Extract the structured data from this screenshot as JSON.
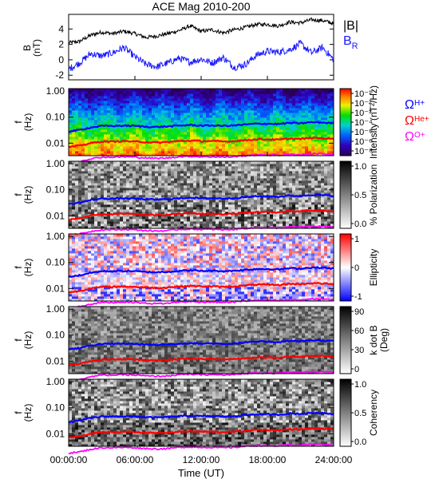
{
  "title": "ACE Mag 2010-200",
  "xaxis": {
    "label": "Time (UT)",
    "ticks": [
      "00:00:00",
      "06:00:00",
      "12:00:00",
      "18:00:00",
      "24:00:00"
    ],
    "tick_hours": [
      0,
      6,
      12,
      18,
      24
    ],
    "range_hours": [
      0,
      24
    ]
  },
  "colors": {
    "B_total": "#000000",
    "B_R": "#1a1aff",
    "H_gyro": "#0000ff",
    "He_gyro": "#ff0000",
    "O_gyro": "#ff00ff"
  },
  "gyro_labels": {
    "H": "Ω",
    "H_sub": "H+",
    "He": "Ω",
    "He_sub": "He+",
    "O": "Ω",
    "O_sub": "O+"
  },
  "chart_data": [
    {
      "type": "line",
      "panel": "mag",
      "title": "ACE Mag 2010-200",
      "ylabel_line1": "B",
      "ylabel_line2": "(nT)",
      "ylim": [
        -2.6,
        5.9
      ],
      "yticks": [
        -2,
        0,
        2,
        4
      ],
      "legend": [
        {
          "name": "|B|",
          "color": "#000000"
        },
        {
          "name": "B",
          "sub": "R",
          "color": "#1a1aff"
        }
      ],
      "series": [
        {
          "name": "|B|",
          "color": "#000000",
          "x": [
            0,
            1,
            2,
            3,
            4,
            5,
            6,
            7,
            8,
            9,
            10,
            11,
            12,
            13,
            14,
            15,
            16,
            17,
            18,
            19,
            20,
            21,
            22,
            23,
            24
          ],
          "y": [
            2.2,
            2.4,
            3.2,
            3.6,
            3.4,
            3.7,
            3.4,
            2.9,
            3.1,
            3.4,
            3.8,
            4.4,
            3.7,
            3.9,
            3.5,
            3.9,
            4.2,
            4.6,
            4.6,
            4.4,
            4.9,
            4.8,
            5.2,
            5.1,
            4.7
          ]
        },
        {
          "name": "B_R",
          "color": "#1a1aff",
          "x": [
            0,
            1,
            2,
            3,
            4,
            5,
            6,
            7,
            8,
            9,
            10,
            11,
            12,
            13,
            14,
            15,
            16,
            17,
            18,
            19,
            20,
            21,
            22,
            23,
            24
          ],
          "y": [
            -1.2,
            -0.4,
            0.8,
            0.5,
            0.9,
            1.6,
            0.4,
            -0.6,
            -0.9,
            -0.4,
            0.2,
            -0.3,
            0.1,
            -0.4,
            0.3,
            -1.0,
            -0.6,
            0.6,
            1.1,
            1.0,
            1.3,
            2.1,
            0.9,
            1.6,
            0.0
          ]
        }
      ]
    },
    {
      "type": "heatmap",
      "panel": "intensity",
      "ylabel_line1": "f",
      "ylabel_line2": "(Hz)",
      "yticks": [
        "1.00",
        "0.10",
        "0.01"
      ],
      "colorbar": {
        "label": "Intensity (nT²/Hz)",
        "ticks": [
          "10⁻¹",
          "10⁻²",
          "10⁻³",
          "10⁻⁴",
          "10⁻⁵",
          "10⁻⁶",
          "10⁻⁸"
        ],
        "scale": "rainbow"
      }
    },
    {
      "type": "heatmap",
      "panel": "polarization",
      "ylabel_line1": "f",
      "ylabel_line2": "(Hz)",
      "yticks": [
        "1.00",
        "0.10",
        "0.01"
      ],
      "colorbar": {
        "label": "% Polarization",
        "ticks": [
          "1.0",
          "0.5",
          "0.0"
        ],
        "scale": "gray"
      }
    },
    {
      "type": "heatmap",
      "panel": "ellipticity",
      "ylabel_line1": "f",
      "ylabel_line2": "(Hz)",
      "yticks": [
        "1.00",
        "0.10",
        "0.01"
      ],
      "colorbar": {
        "label": "Ellipticity",
        "ticks": [
          "1",
          "0",
          "-1"
        ],
        "scale": "redblue"
      }
    },
    {
      "type": "heatmap",
      "panel": "kdotb",
      "ylabel_line1": "f",
      "ylabel_line2": "(Hz)",
      "yticks": [
        "1.00",
        "0.10",
        "0.01"
      ],
      "colorbar": {
        "label": "k dot B",
        "label2": "(Deg)",
        "ticks": [
          "90",
          "60",
          "30",
          "0"
        ],
        "scale": "gray"
      }
    },
    {
      "type": "heatmap",
      "panel": "coherency",
      "ylabel_line1": "f",
      "ylabel_line2": "(Hz)",
      "yticks": [
        "1.00",
        "0.10",
        "0.01"
      ],
      "colorbar": {
        "label": "Coherency",
        "ticks": [
          "1.0",
          "0.5",
          "0.0"
        ],
        "scale": "gray"
      }
    }
  ],
  "gyro_lines": {
    "x": [
      0,
      1,
      2,
      3,
      4,
      5,
      6,
      7,
      8,
      9,
      10,
      11,
      12,
      13,
      14,
      15,
      16,
      17,
      18,
      19,
      20,
      21,
      22,
      23,
      24
    ],
    "H_hz": [
      0.028,
      0.032,
      0.04,
      0.046,
      0.046,
      0.047,
      0.046,
      0.043,
      0.042,
      0.044,
      0.047,
      0.05,
      0.047,
      0.048,
      0.046,
      0.048,
      0.052,
      0.056,
      0.056,
      0.054,
      0.06,
      0.058,
      0.064,
      0.062,
      0.058
    ],
    "He_hz": [
      0.007,
      0.008,
      0.01,
      0.0115,
      0.0115,
      0.012,
      0.0115,
      0.011,
      0.0105,
      0.011,
      0.012,
      0.0125,
      0.012,
      0.012,
      0.0115,
      0.012,
      0.013,
      0.014,
      0.014,
      0.0135,
      0.015,
      0.0145,
      0.016,
      0.0155,
      0.0145
    ],
    "O_hz": [
      0.0018,
      0.002,
      0.0025,
      0.0029,
      0.0029,
      0.003,
      0.0029,
      0.0027,
      0.0026,
      0.0027,
      0.003,
      0.0031,
      0.003,
      0.003,
      0.0029,
      0.003,
      0.0033,
      0.0035,
      0.0035,
      0.0034,
      0.0037,
      0.0036,
      0.004,
      0.0039,
      0.0036
    ]
  }
}
